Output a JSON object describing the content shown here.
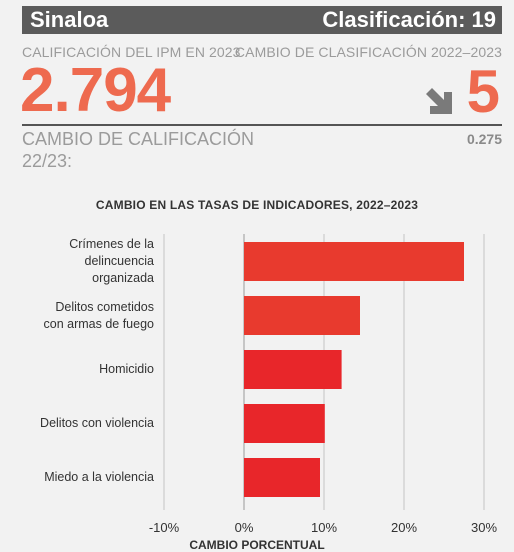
{
  "header": {
    "state": "Sinaloa",
    "rank": "Clasificación: 19"
  },
  "summary": {
    "score_label": "CALIFICACIÓN DEL IPM EN 2023",
    "score_value": "2.794",
    "rank_change_label": "CAMBIO DE CLASIFICACIÓN 2022–2023",
    "rank_change_value": "5",
    "rank_change_icon": "arrow-down-right-icon",
    "score_change_label_line1": "CAMBIO DE CALIFICACIÓN",
    "score_change_label_line2": "22/23:",
    "score_change_value": "0.275"
  },
  "colors": {
    "accent": "#ee6a4f",
    "bar_dark": "#e8262a",
    "bar_light": "#e83a2e",
    "header_bg": "#5b5b5b"
  },
  "chart_data": {
    "type": "bar",
    "orientation": "horizontal",
    "title": "CAMBIO EN LAS TASAS DE INDICADORES, 2022–2023",
    "xlabel": "CAMBIO PORCENTUAL",
    "categories": [
      [
        "Crímenes de la",
        "delincuencia",
        "organizada"
      ],
      [
        "Delitos cometidos",
        "con armas de fuego"
      ],
      [
        "Homicidio"
      ],
      [
        "Delitos con violencia"
      ],
      [
        "Miedo a la violencia"
      ]
    ],
    "values": [
      27.5,
      14.5,
      12.2,
      10.1,
      9.5
    ],
    "xlim": [
      -10,
      30
    ],
    "xticks": [
      -10,
      0,
      10,
      20,
      30
    ],
    "xtick_labels": [
      "-10%",
      "0%",
      "10%",
      "20%",
      "30%"
    ],
    "grid": true
  }
}
